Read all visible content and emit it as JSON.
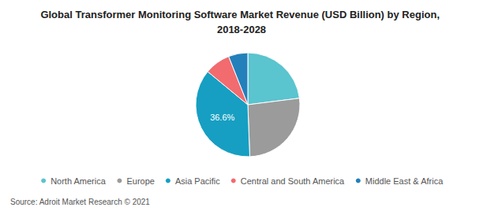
{
  "chart_data": {
    "type": "pie",
    "title": "Global Transformer Monitoring Software Market Revenue (USD Billion) by Region, 2018-2028",
    "source": "Source: Adroit Market Research © 2021",
    "categories": [
      "North America",
      "Europe",
      "Asia Pacific",
      "Central and South America",
      "Middle East & Africa"
    ],
    "values": [
      23,
      26.4,
      36.6,
      8,
      6
    ],
    "value_labels": [
      null,
      null,
      "36.6%",
      null,
      null
    ],
    "colors": [
      "#5ac4cf",
      "#9b9b9b",
      "#169fc2",
      "#f26b6f",
      "#2380ba"
    ],
    "legend": "bottom"
  }
}
